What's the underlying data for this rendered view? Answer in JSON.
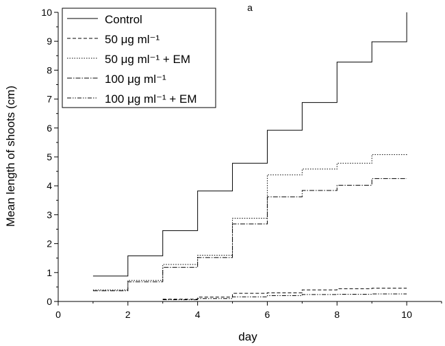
{
  "chart_data": {
    "type": "line",
    "title": "a",
    "xlabel": "day",
    "ylabel": "Mean length of shoots (cm)",
    "xlim": [
      0,
      11
    ],
    "ylim": [
      0,
      10
    ],
    "x_ticks": [
      "0",
      "2",
      "4",
      "6",
      "8",
      "10"
    ],
    "y_ticks": [
      "0",
      "1",
      "2",
      "3",
      "4",
      "5",
      "6",
      "7",
      "8",
      "9",
      "10"
    ],
    "grid": false,
    "legend_position": "top-left",
    "step": true,
    "series": [
      {
        "name": "Control",
        "x": [
          1,
          2,
          3,
          4,
          5,
          6,
          7,
          8,
          9,
          10
        ],
        "y": [
          0.88,
          1.58,
          2.45,
          3.82,
          4.78,
          5.92,
          6.88,
          8.28,
          8.98,
          10.0
        ]
      },
      {
        "name": "50 μg ml⁻¹",
        "x": [
          3,
          4,
          5,
          6,
          7,
          8,
          9,
          10
        ],
        "y": [
          0.08,
          0.15,
          0.28,
          0.3,
          0.4,
          0.44,
          0.46,
          0.46
        ]
      },
      {
        "name": "50 μg ml⁻¹ + EM",
        "x": [
          1,
          2,
          3,
          4,
          5,
          6,
          7,
          8,
          9,
          10
        ],
        "y": [
          0.4,
          0.73,
          1.28,
          1.6,
          2.88,
          4.38,
          4.58,
          4.78,
          5.08,
          5.12
        ]
      },
      {
        "name": "100 μg ml⁻¹",
        "x": [
          1,
          2,
          3,
          4,
          5,
          6,
          7,
          8,
          9,
          10
        ],
        "y": [
          0.37,
          0.68,
          1.18,
          1.52,
          2.68,
          3.62,
          3.84,
          4.02,
          4.25,
          4.25
        ]
      },
      {
        "name": "100 μg ml⁻¹ + EM",
        "x": [
          3,
          4,
          5,
          6,
          7,
          8,
          9,
          10
        ],
        "y": [
          0.06,
          0.1,
          0.16,
          0.2,
          0.24,
          0.25,
          0.26,
          0.26
        ]
      }
    ]
  },
  "legend": [
    {
      "label": "Control",
      "dash": "solid"
    },
    {
      "label": "50 μg ml⁻¹",
      "dash": "dashed"
    },
    {
      "label": "50 μg ml⁻¹ + EM",
      "dash": "dotted"
    },
    {
      "label": "100 μg ml⁻¹",
      "dash": "dashdot"
    },
    {
      "label": "100 μg ml⁻¹ + EM",
      "dash": "dashdotdot"
    }
  ]
}
